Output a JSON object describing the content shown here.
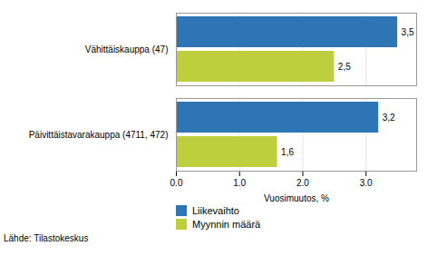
{
  "chart_data": {
    "type": "bar",
    "orientation": "horizontal",
    "categories": [
      "Päivittäistavarakauppa (4711, 472)",
      "Vähittäiskauppa (47)"
    ],
    "series": [
      {
        "name": "Liikevaihto",
        "color": "#2E75B6",
        "values": [
          3.2,
          3.5
        ],
        "value_labels": [
          "3,2",
          "3,5"
        ]
      },
      {
        "name": "Myynnin määrä",
        "color": "#BFCE3C",
        "values": [
          1.6,
          2.5
        ],
        "value_labels": [
          "1,6",
          "2,5"
        ]
      }
    ],
    "xlabel": "Vuosimuutos, %",
    "xlim": [
      0,
      3.8
    ],
    "xticks": [
      0,
      1,
      2,
      3
    ],
    "grid": true,
    "data_labels": true,
    "legend": "bottom",
    "annotations": [
      "Lähde: Tilastokeskus"
    ]
  }
}
